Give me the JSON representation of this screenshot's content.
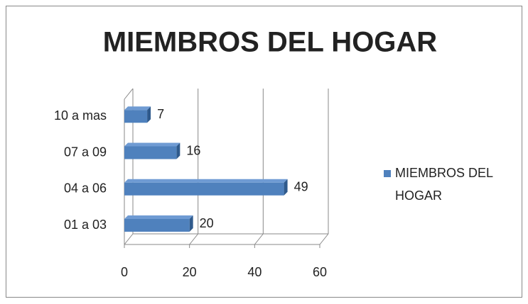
{
  "chart_data": {
    "type": "bar",
    "orientation": "horizontal",
    "title": "MIEMBROS DEL HOGAR",
    "categories": [
      "01 a 03",
      "04 a 06",
      "07 a 09",
      "10 a mas"
    ],
    "series": [
      {
        "name": "MIEMBROS DEL HOGAR",
        "color": "#4f81bd",
        "values": [
          20,
          49,
          16,
          7
        ]
      }
    ],
    "xlim": [
      0,
      60
    ],
    "xticks": [
      0,
      20,
      40,
      60
    ],
    "grid": true,
    "legend": "right"
  }
}
